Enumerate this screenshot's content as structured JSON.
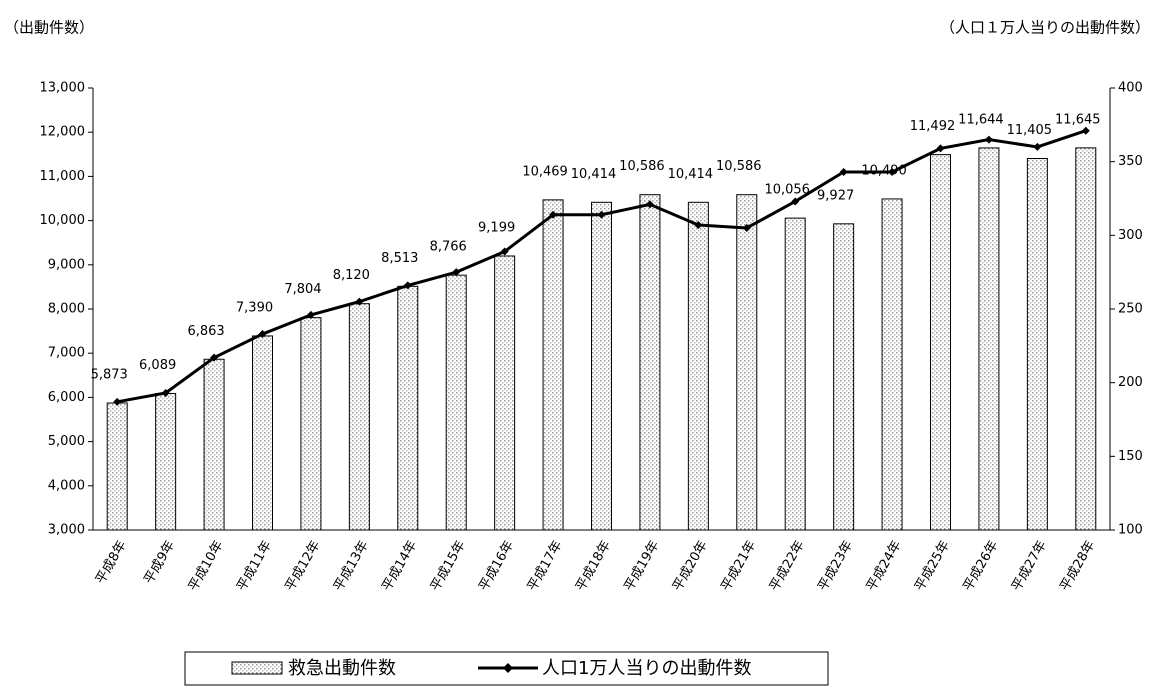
{
  "chart_data": {
    "type": "bar-line",
    "y_label": "（出動件数）",
    "y2_label": "（人口１万人当りの出動件数）",
    "categories": [
      "平成8年",
      "平成9年",
      "平成10年",
      "平成11年",
      "平成12年",
      "平成13年",
      "平成14年",
      "平成15年",
      "平成16年",
      "平成17年",
      "平成18年",
      "平成19年",
      "平成20年",
      "平成21年",
      "平成22年",
      "平成23年",
      "平成24年",
      "平成25年",
      "平成26年",
      "平成27年",
      "平成28年"
    ],
    "series": [
      {
        "name": "救急出動件数",
        "type": "bar",
        "color": "#d9d9d9",
        "values": [
          5873,
          6089,
          6863,
          7390,
          7804,
          8120,
          8513,
          8766,
          9199,
          10469,
          10414,
          10586,
          10414,
          10586,
          10056,
          9927,
          10490,
          11492,
          11644,
          11405,
          11645
        ],
        "value_labels": [
          "5,873",
          "6,089",
          "6,863",
          "7,390",
          "7,804",
          "8,120",
          "8,513",
          "8,766",
          "9,199",
          "10,469",
          "10,414",
          "10,586",
          "10,414",
          "10,586",
          "10,056",
          "9,927",
          "10,490",
          "11,492",
          "11,644",
          "11,405",
          "11,645"
        ]
      },
      {
        "name": "人口1万人当りの出動件数",
        "type": "line",
        "axis": "y2",
        "color": "#000000",
        "values": [
          187,
          193,
          217,
          233,
          246,
          255,
          266,
          275,
          289,
          314,
          314,
          321,
          307,
          305,
          323,
          343,
          343,
          359,
          365,
          360,
          371
        ]
      }
    ],
    "ylim": [
      3000,
      13000
    ],
    "yticks": [
      {
        "value": 3000,
        "label": "3,000"
      },
      {
        "value": 4000,
        "label": "4,000"
      },
      {
        "value": 5000,
        "label": "5,000"
      },
      {
        "value": 6000,
        "label": "6,000"
      },
      {
        "value": 7000,
        "label": "7,000"
      },
      {
        "value": 8000,
        "label": "8,000"
      },
      {
        "value": 9000,
        "label": "9,000"
      },
      {
        "value": 10000,
        "label": "10,000"
      },
      {
        "value": 11000,
        "label": "11,000"
      },
      {
        "value": 12000,
        "label": "12,000"
      },
      {
        "value": 13000,
        "label": "13,000"
      }
    ],
    "y2lim": [
      100,
      400
    ],
    "y2ticks": [
      100,
      150,
      200,
      250,
      300,
      350,
      400
    ],
    "grid": false
  }
}
